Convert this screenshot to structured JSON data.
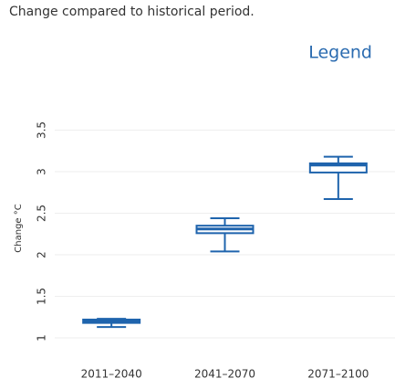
{
  "chart_data": {
    "type": "box",
    "title": "Change compared to historical period.",
    "legend_title": "Legend",
    "y_label": "Change °C",
    "color": "#1f64ad",
    "categories": [
      "2011–2040",
      "2041–2070",
      "2071–2100"
    ],
    "boxes": [
      {
        "min": 1.13,
        "q1": 1.18,
        "median": 1.2,
        "q3": 1.22,
        "max": 1.23
      },
      {
        "min": 2.04,
        "q1": 2.26,
        "median": 2.31,
        "q3": 2.35,
        "max": 2.44
      },
      {
        "min": 2.67,
        "q1": 2.99,
        "median": 3.08,
        "q3": 3.1,
        "max": 3.18
      }
    ],
    "ylim": [
      0.8,
      3.8
    ],
    "yticks": [
      1,
      1.5,
      2,
      2.5,
      3,
      3.5
    ],
    "grid": true
  }
}
